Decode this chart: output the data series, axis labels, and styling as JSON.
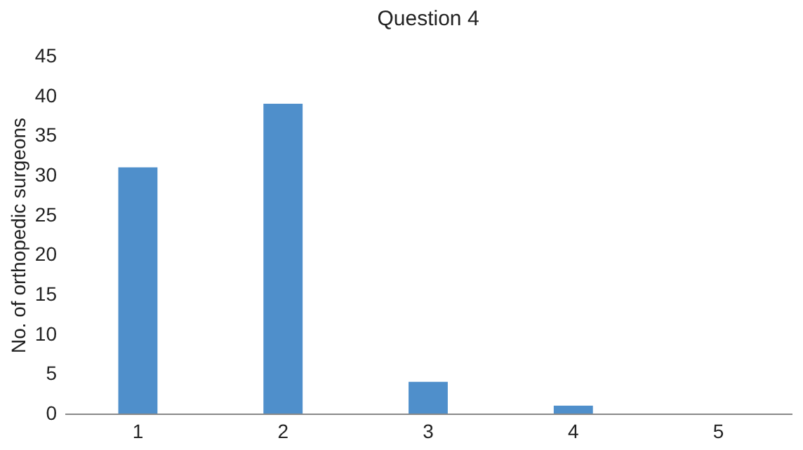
{
  "chart_data": {
    "type": "bar",
    "title": "Question 4",
    "ylabel": "No. of orthopedic surgeons",
    "categories": [
      "1",
      "2",
      "3",
      "4",
      "5"
    ],
    "values": [
      31,
      39,
      4,
      1,
      0
    ],
    "color": "#4f8fcb",
    "ylim": [
      0,
      45
    ],
    "yticks": [
      0,
      5,
      10,
      15,
      20,
      25,
      30,
      35,
      40,
      45
    ],
    "grid": false
  }
}
